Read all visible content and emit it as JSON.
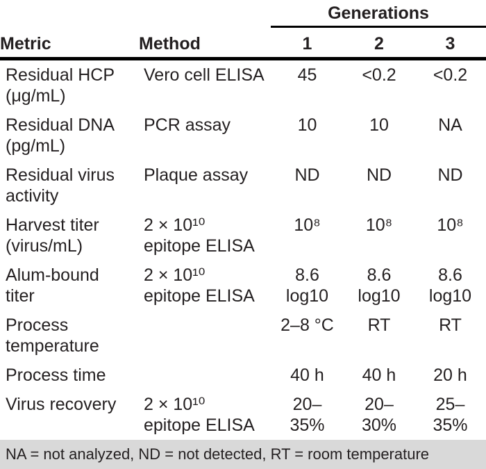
{
  "table": {
    "group_header": "Generations",
    "columns": {
      "metric": "Metric",
      "method": "Method",
      "gen1": "1",
      "gen2": "2",
      "gen3": "3"
    },
    "rows": [
      {
        "metric": "Residual HCP\n(μg/mL)",
        "method": "Vero cell ELISA",
        "gen1": "45",
        "gen2": "<0.2",
        "gen3": "<0.2"
      },
      {
        "metric": "Residual DNA\n(pg/mL)",
        "method": "PCR assay",
        "gen1": "10",
        "gen2": "10",
        "gen3": "NA"
      },
      {
        "metric": "Residual virus\nactivity",
        "method": "Plaque assay",
        "gen1": "ND",
        "gen2": "ND",
        "gen3": "ND"
      },
      {
        "metric": "Harvest titer\n(virus/mL)",
        "method": "2 × 10¹⁰\nepitope ELISA",
        "gen1": "10⁸",
        "gen2": "10⁸",
        "gen3": "10⁸"
      },
      {
        "metric": "Alum-bound\ntiter",
        "method": "2 × 10¹⁰\nepitope ELISA",
        "gen1": "8.6\nlog10",
        "gen2": "8.6\nlog10",
        "gen3": "8.6\nlog10"
      },
      {
        "metric": "Process\ntemperature",
        "method": "",
        "gen1": "2–8 °C",
        "gen2": "RT",
        "gen3": "RT"
      },
      {
        "metric": "Process time",
        "method": "",
        "gen1": "40 h",
        "gen2": "40 h",
        "gen3": "20 h"
      },
      {
        "metric": "Virus recovery",
        "method": "2 × 10¹⁰\nepitope ELISA",
        "gen1": "20–\n35%",
        "gen2": "20–\n30%",
        "gen3": "25–\n35%"
      }
    ],
    "footnote": "NA = not analyzed, ND = not detected, RT = room temperature"
  },
  "colors": {
    "text": "#231f20",
    "rule": "#000000",
    "footnote_background": "#d9d9d9"
  }
}
